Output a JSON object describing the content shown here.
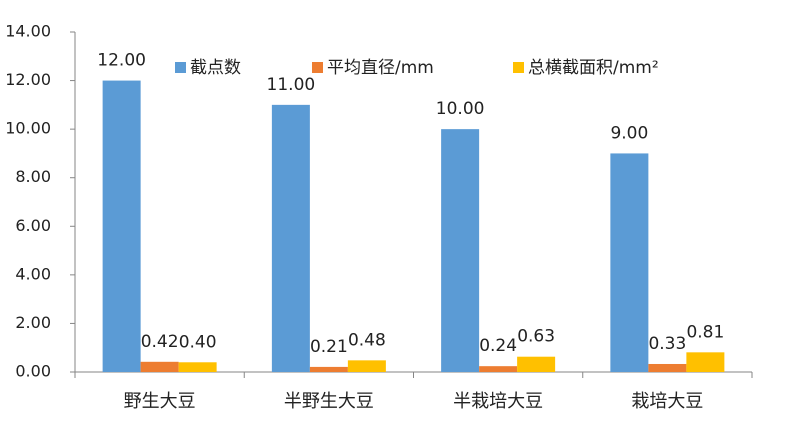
{
  "chart_data": {
    "type": "bar",
    "categories": [
      "野生大豆",
      "半野生大豆",
      "半栽培大豆",
      "栽培大豆"
    ],
    "series": [
      {
        "name": "截点数",
        "color": "#5b9bd5",
        "values": [
          12,
          11,
          10,
          9
        ],
        "value_labels": [
          "12.00",
          "11.00",
          "10.00",
          "9.00"
        ]
      },
      {
        "name": "平均直径/mm",
        "color": "#ed7d31",
        "values": [
          0.42,
          0.21,
          0.24,
          0.33
        ]
      },
      {
        "name": "总横截面积/mm²",
        "color": "#ffc000",
        "values": [
          0.4,
          0.48,
          0.63,
          0.81
        ],
        "value_labels": [
          "0.40",
          "0.48",
          "0.63",
          "0.81"
        ]
      }
    ],
    "ylim": [
      0,
      14
    ],
    "yticks": [
      {
        "value": 0,
        "label": "0.00"
      },
      {
        "value": 2,
        "label": "2.00"
      },
      {
        "value": 4,
        "label": "4.00"
      },
      {
        "value": 6,
        "label": "6.00"
      },
      {
        "value": 8,
        "label": "8.00"
      },
      {
        "value": 10,
        "label": "10.00"
      },
      {
        "value": 12,
        "label": "12.00"
      },
      {
        "value": 14,
        "label": "14.00"
      }
    ],
    "grid": false,
    "legend": "top"
  }
}
